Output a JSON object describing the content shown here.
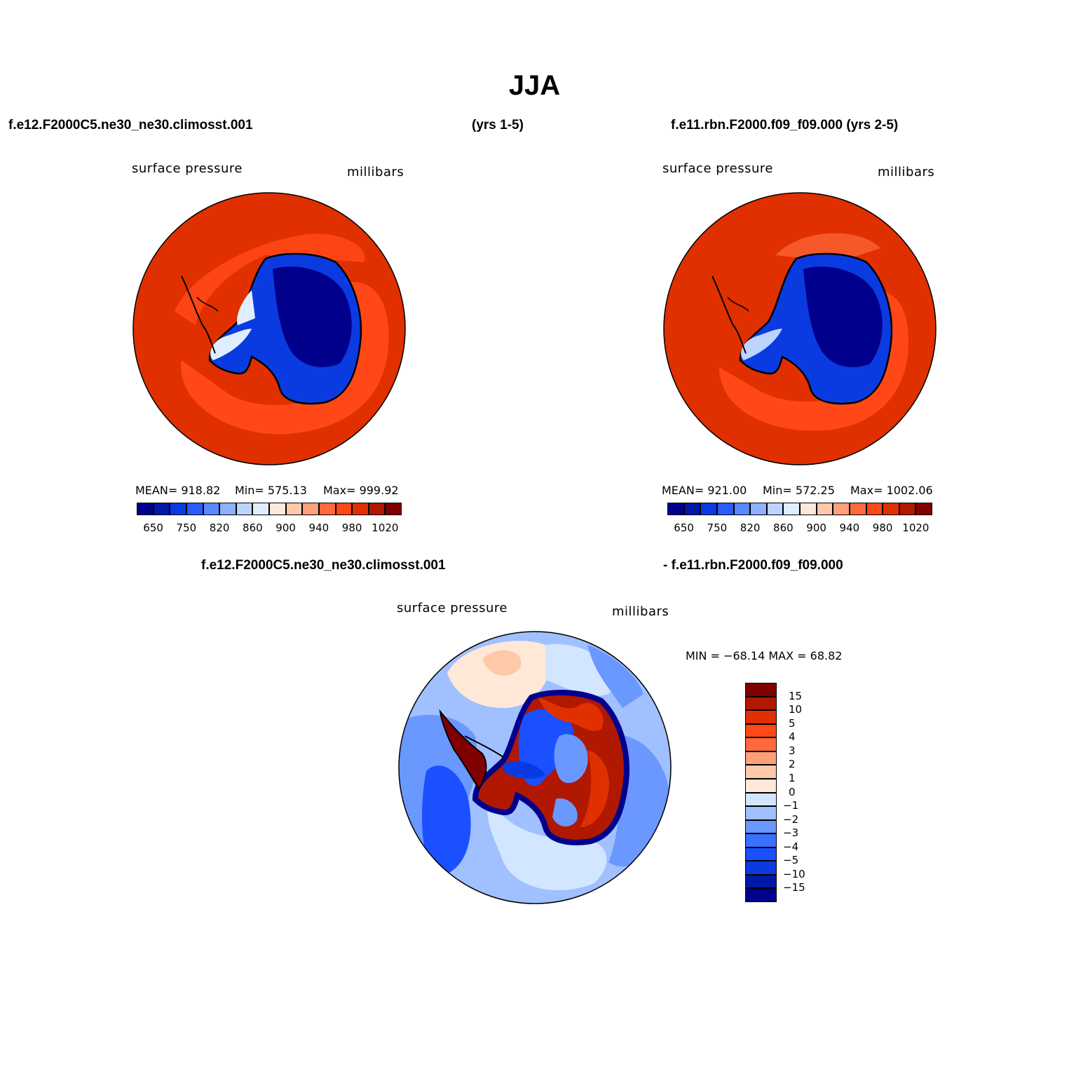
{
  "title": "JJA",
  "case1": {
    "name": "f.e12.F2000C5.ne30_ne30.climosst.001",
    "years": "(yrs 1-5)"
  },
  "case2": {
    "name": "f.e11.rbn.F2000.f09_f09.000 (yrs 2-5)"
  },
  "panels": [
    {
      "left_label": "surface pressure",
      "right_label": "millibars",
      "mean": "MEAN= 918.82",
      "min": "Min= 575.13",
      "max": "Max= 999.92"
    },
    {
      "left_label": "surface pressure",
      "right_label": "millibars",
      "mean": "MEAN= 921.00",
      "min": "Min= 572.25",
      "max": "Max= 1002.06"
    }
  ],
  "diff": {
    "case_left": "f.e12.F2000C5.ne30_ne30.climosst.001",
    "case_right": "- f.e11.rbn.F2000.f09_f09.000",
    "left_label": "surface pressure",
    "right_label": "millibars",
    "minmax": "MIN = −68.14  MAX =   68.82"
  },
  "abs_colorbar": {
    "colors": [
      "#00008c",
      "#0018a8",
      "#0a3be0",
      "#2a5bff",
      "#5a88ff",
      "#8db0ff",
      "#bcd4ff",
      "#dfeeff",
      "#ffe8d8",
      "#ffc8a8",
      "#ffa07a",
      "#ff6a3c",
      "#ff4815",
      "#e03000",
      "#b01800",
      "#800000"
    ],
    "tick_labels": [
      "650",
      "750",
      "820",
      "860",
      "900",
      "940",
      "980",
      "1020"
    ]
  },
  "diff_colorbar": {
    "colors": [
      "#00008c",
      "#0018a8",
      "#0a3be0",
      "#1a50ff",
      "#3a70ff",
      "#6a98ff",
      "#a0c0ff",
      "#d2e6ff",
      "#ffe8d8",
      "#ffc8a8",
      "#ffa07a",
      "#ff6a3c",
      "#ff4815",
      "#e03000",
      "#b01800",
      "#800000"
    ],
    "tick_labels": [
      "−15",
      "−10",
      "−5",
      "−4",
      "−3",
      "−2",
      "−1",
      "0",
      "1",
      "2",
      "3",
      "4",
      "5",
      "10",
      "15"
    ]
  }
}
